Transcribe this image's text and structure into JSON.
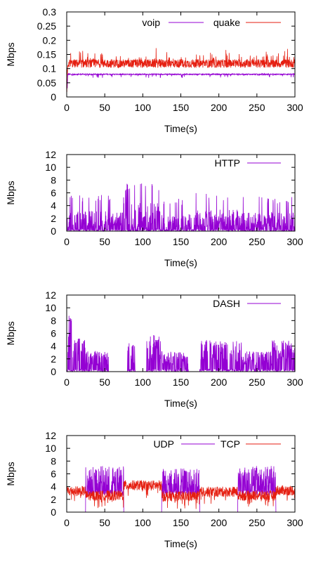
{
  "chart_data": [
    {
      "type": "line",
      "xlabel": "Time(s)",
      "ylabel": "Mbps",
      "xlim": [
        0,
        300
      ],
      "ylim": [
        0,
        0.3
      ],
      "xticks": [
        "0",
        "50",
        "100",
        "150",
        "200",
        "250",
        "300"
      ],
      "yticks": [
        "0",
        "0.05",
        "0.1",
        "0.15",
        "0.2",
        "0.25",
        "0.3"
      ],
      "grid": false,
      "legend_position": "top-right",
      "series": [
        {
          "name": "voip",
          "color": "#9400d3",
          "pattern": "constant",
          "base": 0.08,
          "noise": 0.004,
          "spikes": 0.012,
          "start_spike": 0.09
        },
        {
          "name": "quake",
          "color": "#e51e10",
          "pattern": "noisy",
          "base": 0.118,
          "noise": 0.03,
          "spikes": 0.04,
          "start_spike": 0.1
        }
      ]
    },
    {
      "type": "line",
      "xlabel": "Time(s)",
      "ylabel": "Mbps",
      "xlim": [
        0,
        300
      ],
      "ylim": [
        0,
        12
      ],
      "xticks": [
        "0",
        "50",
        "100",
        "150",
        "200",
        "250",
        "300"
      ],
      "yticks": [
        "0",
        "2",
        "4",
        "6",
        "8",
        "10",
        "12"
      ],
      "grid": false,
      "legend_position": "top-right",
      "series": [
        {
          "name": "HTTP",
          "color": "#9400d3",
          "pattern": "bursty",
          "segments": [
            [
              0,
              75,
              3.0
            ],
            [
              75,
              125,
              4.2
            ],
            [
              125,
              170,
              2.6
            ],
            [
              170,
              225,
              3.2
            ],
            [
              225,
              300,
              2.8
            ]
          ]
        }
      ]
    },
    {
      "type": "line",
      "xlabel": "Time(s)",
      "ylabel": "Mbps",
      "xlim": [
        0,
        300
      ],
      "ylim": [
        0,
        12
      ],
      "xticks": [
        "0",
        "50",
        "100",
        "150",
        "200",
        "250",
        "300"
      ],
      "yticks": [
        "0",
        "2",
        "4",
        "6",
        "8",
        "10",
        "12"
      ],
      "grid": false,
      "legend_position": "top-right",
      "series": [
        {
          "name": "DASH",
          "color": "#9400d3",
          "pattern": "dash",
          "segments": [
            [
              0,
              3,
              5
            ],
            [
              3,
              8,
              7
            ],
            [
              8,
              25,
              4
            ],
            [
              25,
              55,
              2.5
            ],
            [
              55,
              80,
              0
            ],
            [
              80,
              90,
              3.5
            ],
            [
              90,
              105,
              0
            ],
            [
              105,
              125,
              4.5
            ],
            [
              125,
              160,
              2.5
            ],
            [
              160,
              175,
              0
            ],
            [
              175,
              230,
              4
            ],
            [
              230,
              270,
              2.5
            ],
            [
              270,
              300,
              3.8
            ]
          ]
        }
      ]
    },
    {
      "type": "line",
      "xlabel": "Time(s)",
      "ylabel": "Mbps",
      "xlim": [
        0,
        300
      ],
      "ylim": [
        0,
        12
      ],
      "xticks": [
        "0",
        "50",
        "100",
        "150",
        "200",
        "250",
        "300"
      ],
      "yticks": [
        "0",
        "2",
        "4",
        "6",
        "8",
        "10",
        "12"
      ],
      "grid": false,
      "legend_position": "top-right",
      "series": [
        {
          "name": "UDP",
          "color": "#9400d3",
          "pattern": "onoff",
          "segments": [
            [
              0,
              25,
              0
            ],
            [
              25,
              75,
              5
            ],
            [
              75,
              125,
              0
            ],
            [
              125,
              175,
              4.8
            ],
            [
              175,
              225,
              0
            ],
            [
              225,
              275,
              5
            ],
            [
              275,
              300,
              0
            ]
          ]
        },
        {
          "name": "TCP",
          "color": "#e51e10",
          "pattern": "tcp",
          "segments": [
            [
              0,
              25,
              3.3
            ],
            [
              25,
              75,
              2.6
            ],
            [
              75,
              125,
              4.2
            ],
            [
              125,
              175,
              2.5
            ],
            [
              175,
              225,
              3.2
            ],
            [
              225,
              275,
              2.6
            ],
            [
              275,
              300,
              3.4
            ]
          ]
        }
      ]
    }
  ]
}
